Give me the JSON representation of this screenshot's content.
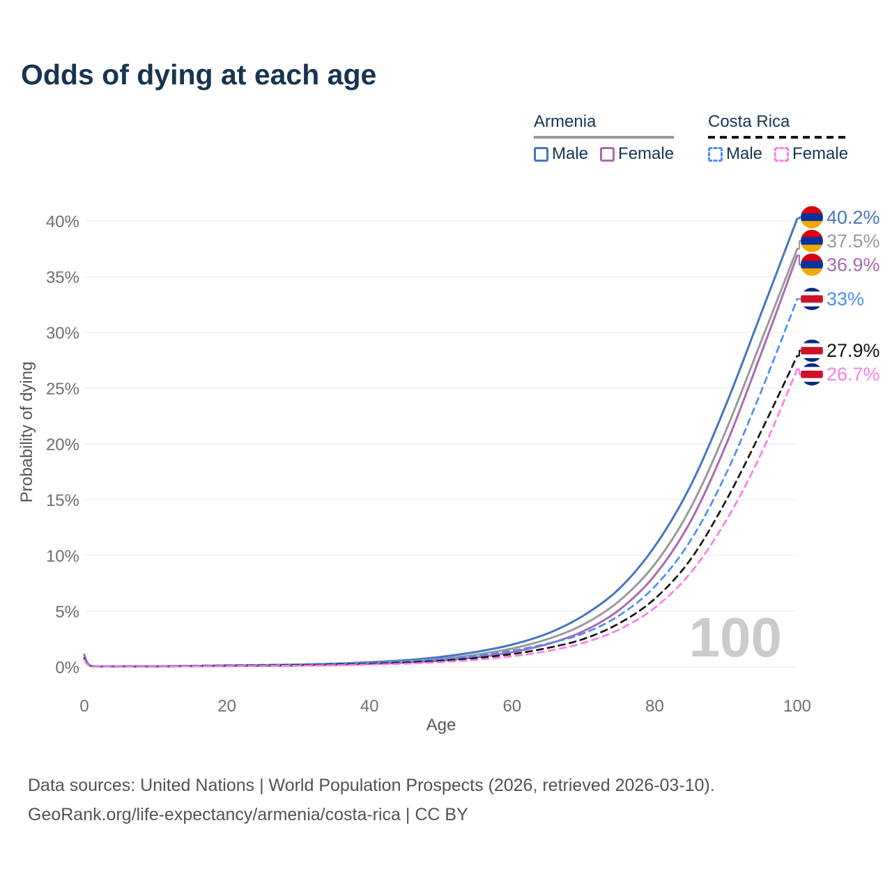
{
  "title": "Odds of dying at each age",
  "legend": {
    "groups": [
      {
        "country": "Armenia",
        "line_style": "solid",
        "line_color": "#9a9a9a",
        "items": [
          {
            "label": "Male",
            "color": "#4575c0",
            "dashed": false
          },
          {
            "label": "Female",
            "color": "#a86bb0",
            "dashed": false
          }
        ]
      },
      {
        "country": "Costa Rica",
        "line_style": "dashed",
        "line_color": "#141414",
        "items": [
          {
            "label": "Male",
            "color": "#4b8ef2",
            "dashed": true
          },
          {
            "label": "Female",
            "color": "#fb7ce8",
            "dashed": true
          }
        ]
      }
    ]
  },
  "chart_data": {
    "type": "line",
    "title": "Odds of dying at each age",
    "xlabel": "Age",
    "ylabel": "Probability of dying",
    "xlim": [
      0,
      100
    ],
    "ylim": [
      0,
      40
    ],
    "grid": "horizontal",
    "x_ticks": [
      0,
      20,
      40,
      60,
      80,
      100
    ],
    "y_ticks": [
      {
        "value": 0,
        "label": "0%"
      },
      {
        "value": 5,
        "label": "5%"
      },
      {
        "value": 10,
        "label": "10%"
      },
      {
        "value": 15,
        "label": "15%"
      },
      {
        "value": 20,
        "label": "20%"
      },
      {
        "value": 25,
        "label": "25%"
      },
      {
        "value": 30,
        "label": "30%"
      },
      {
        "value": 35,
        "label": "35%"
      },
      {
        "value": 40,
        "label": "40%"
      }
    ],
    "age_marker_label": "100",
    "x": [
      0,
      1,
      5,
      10,
      15,
      20,
      25,
      30,
      35,
      40,
      45,
      50,
      55,
      60,
      65,
      70,
      75,
      80,
      85,
      90,
      95,
      100
    ],
    "series": [
      {
        "name": "Armenia Male",
        "country": "Armenia",
        "sex": "Male",
        "color": "#4575c0",
        "dashed": false,
        "flag": "armenia",
        "end_label": "40.2%",
        "values": [
          1.1,
          0.08,
          0.05,
          0.06,
          0.09,
          0.13,
          0.16,
          0.21,
          0.29,
          0.42,
          0.6,
          0.9,
          1.35,
          2.0,
          3.0,
          4.6,
          7.0,
          10.8,
          16.2,
          23.5,
          31.8,
          40.2
        ]
      },
      {
        "name": "Armenia Both sexes",
        "country": "Armenia",
        "sex": "Both",
        "color": "#9a9a9a",
        "dashed": false,
        "flag": "armenia",
        "end_label": "37.5%",
        "values": [
          1.0,
          0.07,
          0.05,
          0.05,
          0.08,
          0.1,
          0.13,
          0.17,
          0.23,
          0.33,
          0.48,
          0.72,
          1.1,
          1.65,
          2.5,
          3.8,
          5.9,
          9.2,
          14.2,
          21.2,
          29.3,
          37.5
        ]
      },
      {
        "name": "Armenia Female",
        "country": "Armenia",
        "sex": "Female",
        "color": "#a86bb0",
        "dashed": false,
        "flag": "armenia",
        "end_label": "36.9%",
        "values": [
          0.9,
          0.06,
          0.04,
          0.04,
          0.06,
          0.08,
          0.1,
          0.13,
          0.18,
          0.26,
          0.38,
          0.57,
          0.87,
          1.32,
          2.05,
          3.2,
          5.1,
          8.2,
          13.0,
          19.9,
          28.2,
          36.9
        ]
      },
      {
        "name": "Costa Rica Male",
        "country": "Costa Rica",
        "sex": "Male",
        "color": "#4b8ef2",
        "dashed": true,
        "flag": "costa-rica",
        "end_label": "33%",
        "values": [
          0.85,
          0.07,
          0.04,
          0.05,
          0.1,
          0.15,
          0.18,
          0.22,
          0.28,
          0.37,
          0.5,
          0.7,
          1.0,
          1.45,
          2.1,
          3.0,
          4.6,
          7.2,
          11.3,
          17.3,
          24.8,
          33.0
        ]
      },
      {
        "name": "Costa Rica Both sexes",
        "country": "Costa Rica",
        "sex": "Both",
        "color": "#141414",
        "dashed": true,
        "flag": "costa-rica",
        "end_label": "27.9%",
        "values": [
          0.75,
          0.06,
          0.04,
          0.04,
          0.08,
          0.11,
          0.13,
          0.16,
          0.21,
          0.28,
          0.39,
          0.55,
          0.8,
          1.15,
          1.7,
          2.5,
          3.9,
          6.1,
          9.6,
          14.9,
          21.2,
          27.9
        ]
      },
      {
        "name": "Costa Rica Female",
        "country": "Costa Rica",
        "sex": "Female",
        "color": "#fb7ce8",
        "dashed": true,
        "flag": "costa-rica",
        "end_label": "26.7%",
        "values": [
          0.65,
          0.05,
          0.03,
          0.03,
          0.06,
          0.08,
          0.09,
          0.11,
          0.15,
          0.21,
          0.29,
          0.43,
          0.64,
          0.95,
          1.43,
          2.15,
          3.35,
          5.3,
          8.4,
          13.1,
          19.2,
          26.7
        ]
      }
    ]
  },
  "flags": {
    "armenia": {
      "stripes": [
        {
          "color": "#D90012",
          "weight": 1
        },
        {
          "color": "#0033A0",
          "weight": 1
        },
        {
          "color": "#F2A800",
          "weight": 1
        }
      ]
    },
    "costa-rica": {
      "stripes": [
        {
          "color": "#002B7F",
          "weight": 1
        },
        {
          "color": "#FFFFFF",
          "weight": 1
        },
        {
          "color": "#CE1126",
          "weight": 2
        },
        {
          "color": "#FFFFFF",
          "weight": 1
        },
        {
          "color": "#002B7F",
          "weight": 1
        }
      ]
    }
  },
  "footer": {
    "line1": "Data sources: United Nations | World Population Prospects (2026, retrieved 2026-03-10).",
    "line2": "GeoRank.org/life-expectancy/armenia/costa-rica | CC BY"
  }
}
